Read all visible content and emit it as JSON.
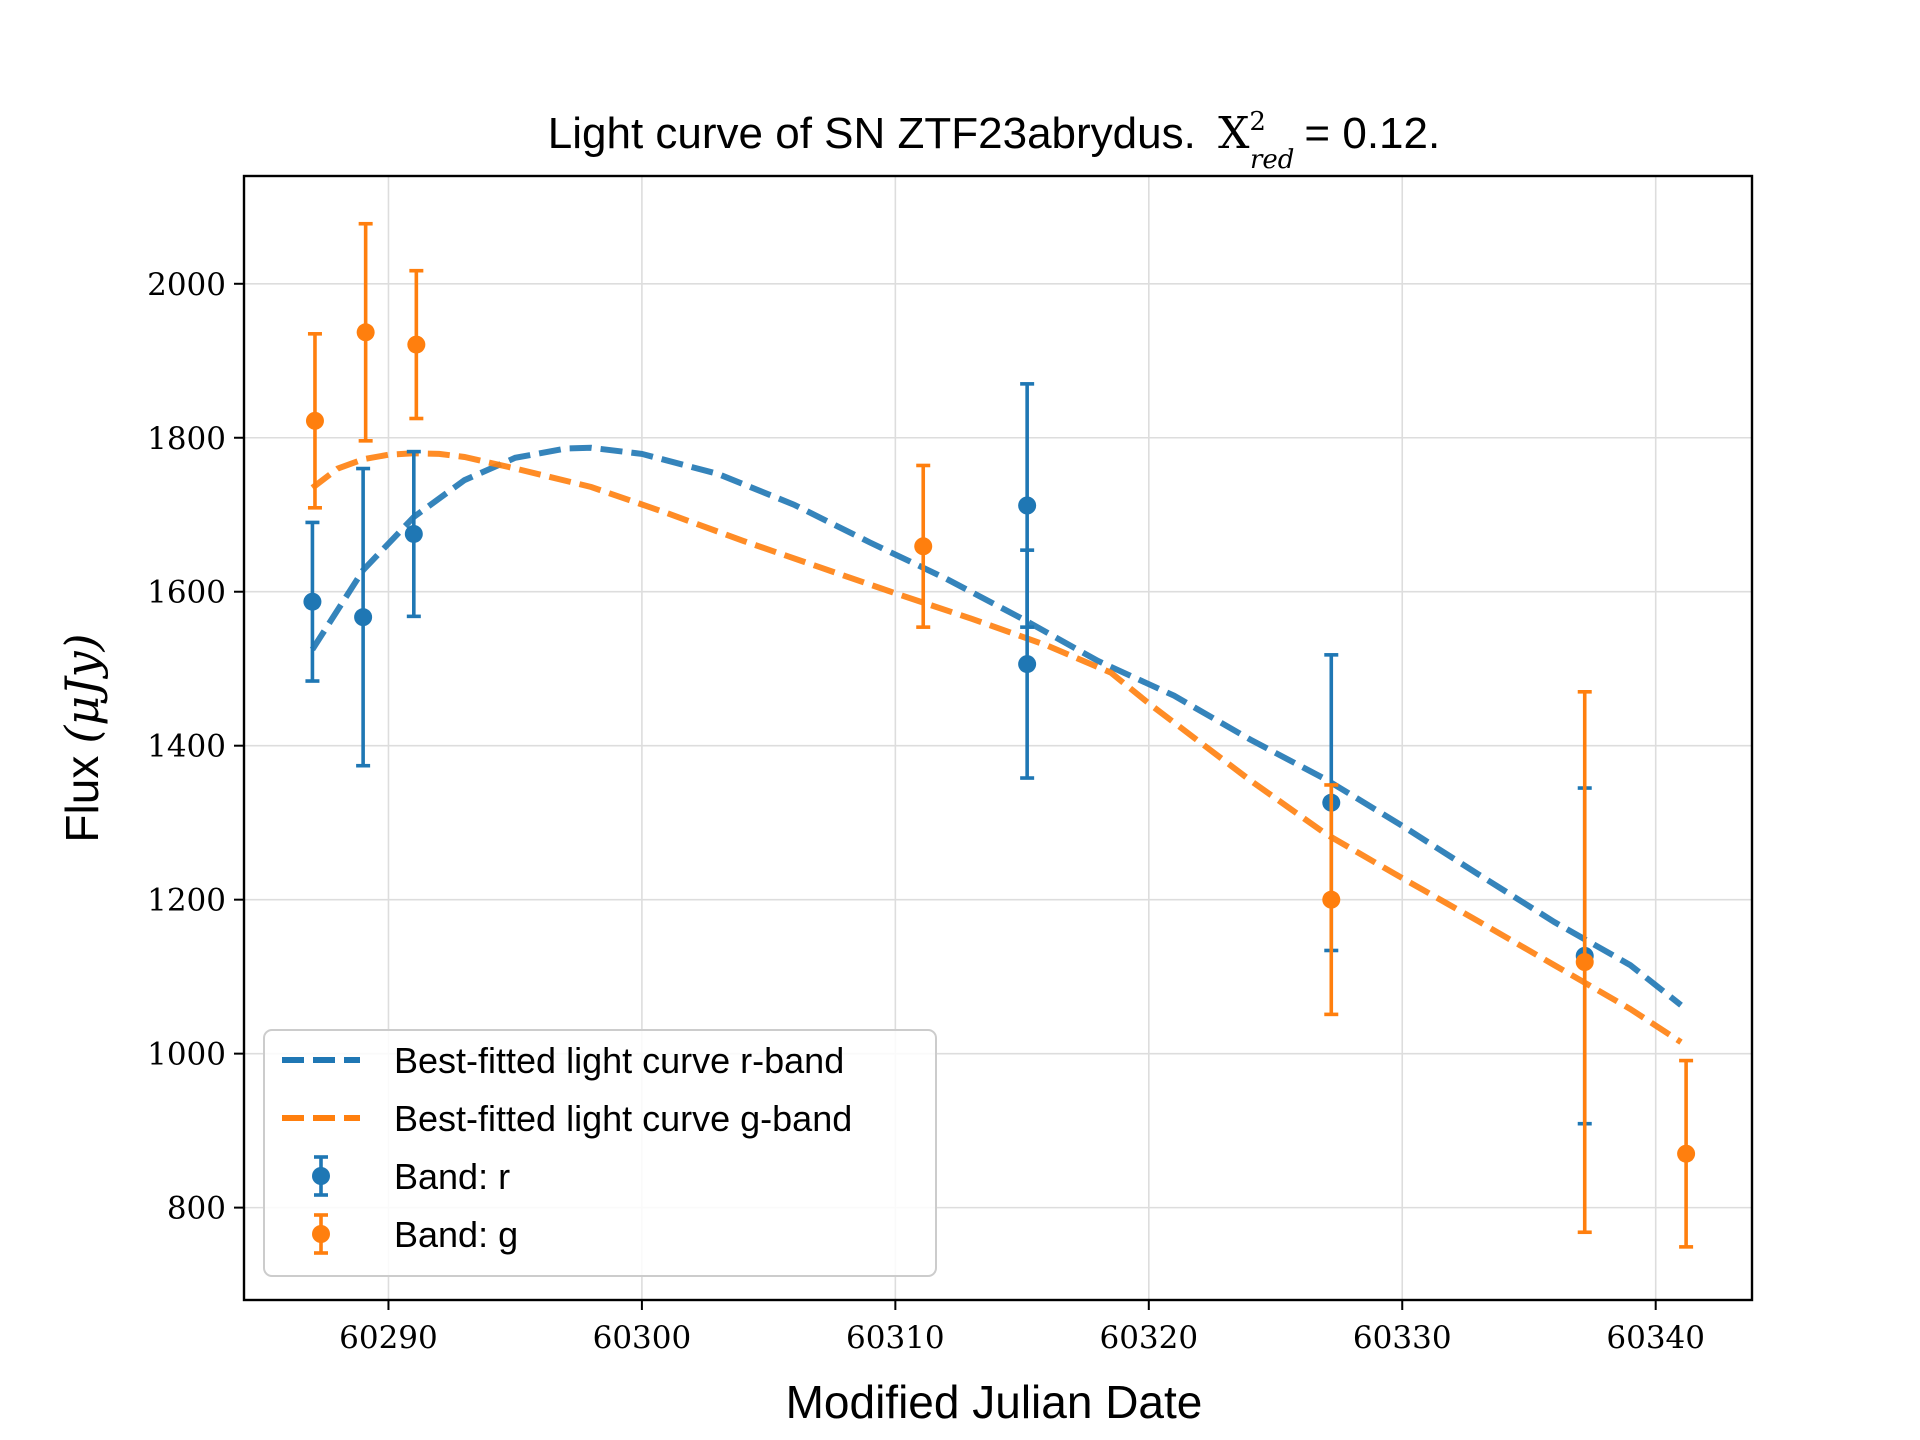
{
  "chart_data": {
    "type": "scatter",
    "title": "Light curve of SN ZTF23abrydus.",
    "title_math": {
      "symbol": "X",
      "sup": "2",
      "sub": "red",
      "rest": "= 0.12."
    },
    "xlabel": "Modified Julian Date",
    "ylabel": "Flux",
    "ylabel_math": "(μJy)",
    "xlim": [
      60284.3,
      60343.8
    ],
    "ylim": [
      680,
      2140
    ],
    "xticks": [
      60290,
      60300,
      60310,
      60320,
      60330,
      60340
    ],
    "yticks": [
      800,
      1000,
      1200,
      1400,
      1600,
      1800,
      2000
    ],
    "grid": true,
    "legend_position": "lower-left",
    "colors": {
      "r": "#1f77b4",
      "g": "#ff7f0e"
    },
    "series": [
      {
        "name": "Best-fitted light curve r-band",
        "kind": "line",
        "style": "dashed",
        "color": "#1f77b4",
        "x": [
          60287.0,
          60289.0,
          60291.0,
          60293.0,
          60295.0,
          60297.0,
          60298.0,
          60300.0,
          60303.0,
          60306.0,
          60309.0,
          60312.0,
          60315.0,
          60318.0,
          60321.0,
          60324.0,
          60327.0,
          60330.0,
          60333.0,
          60336.0,
          60339.0,
          60341.0
        ],
        "y": [
          1525,
          1628,
          1697,
          1745,
          1774,
          1786,
          1787,
          1779,
          1753,
          1713,
          1664,
          1617,
          1565,
          1510,
          1465,
          1408,
          1356,
          1296,
          1233,
          1171,
          1115,
          1063
        ]
      },
      {
        "name": "Best-fitted light curve g-band",
        "kind": "line",
        "style": "dashed",
        "color": "#ff7f0e",
        "x": [
          60287.0,
          60288.0,
          60289.0,
          60290.0,
          60291.0,
          60292.0,
          60293.0,
          60295.0,
          60298.0,
          60301.0,
          60304.0,
          60307.0,
          60310.0,
          60313.0,
          60316.0,
          60318.5,
          60320.0,
          60324.0,
          60327.0,
          60330.0,
          60333.0,
          60336.0,
          60339.0,
          60341.0
        ],
        "y": [
          1735,
          1760,
          1772,
          1778,
          1780,
          1779,
          1775,
          1760,
          1736,
          1702,
          1666,
          1632,
          1598,
          1565,
          1530,
          1495,
          1455,
          1355,
          1285,
          1228,
          1172,
          1115,
          1058,
          1015
        ]
      },
      {
        "name": "Band: r",
        "kind": "errorbar",
        "color": "#1f77b4",
        "x": [
          60287.0,
          60289.0,
          60291.0,
          60315.2,
          60315.2,
          60327.2,
          60337.2
        ],
        "y": [
          1587,
          1567,
          1675,
          1712,
          1506,
          1326,
          1127
        ],
        "yerr": [
          103,
          193,
          107,
          158,
          148,
          192,
          218
        ]
      },
      {
        "name": "Band: g",
        "kind": "errorbar",
        "color": "#ff7f0e",
        "x": [
          60287.1,
          60289.1,
          60291.1,
          60311.1,
          60327.2,
          60337.2,
          60341.2
        ],
        "y": [
          1822,
          1937,
          1921,
          1659,
          1200,
          1119,
          870
        ],
        "yerr": [
          113,
          141,
          96,
          105,
          149,
          351,
          121
        ]
      }
    ]
  }
}
